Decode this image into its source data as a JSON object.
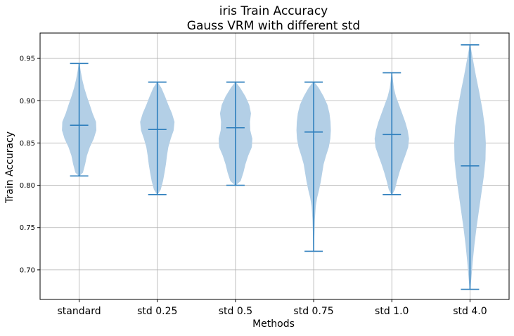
{
  "chart_data": {
    "type": "violin",
    "title": [
      "iris Train Accuracy",
      "Gauss VRM with different std"
    ],
    "xlabel": "Methods",
    "ylabel": "Train Accuracy",
    "categories": [
      "standard",
      "std 0.25",
      "std 0.5",
      "std 0.75",
      "std 1.0",
      "std 4.0"
    ],
    "ylim": [
      0.665,
      0.98
    ],
    "yticks": [
      0.7,
      0.75,
      0.8,
      0.85,
      0.9,
      0.95
    ],
    "ytick_labels": [
      "0.70",
      "0.75",
      "0.80",
      "0.85",
      "0.90",
      "0.95"
    ],
    "grid": true,
    "violins": [
      {
        "name": "standard",
        "min": 0.811,
        "max": 0.944,
        "mean": 0.871,
        "density": [
          [
            0.811,
            0.02
          ],
          [
            0.815,
            0.22
          ],
          [
            0.825,
            0.35
          ],
          [
            0.835,
            0.45
          ],
          [
            0.845,
            0.62
          ],
          [
            0.855,
            0.85
          ],
          [
            0.865,
            1.0
          ],
          [
            0.875,
            0.98
          ],
          [
            0.885,
            0.78
          ],
          [
            0.895,
            0.62
          ],
          [
            0.905,
            0.45
          ],
          [
            0.915,
            0.3
          ],
          [
            0.925,
            0.18
          ],
          [
            0.935,
            0.09
          ],
          [
            0.944,
            0.02
          ]
        ]
      },
      {
        "name": "std 0.25",
        "min": 0.789,
        "max": 0.922,
        "mean": 0.866,
        "density": [
          [
            0.789,
            0.02
          ],
          [
            0.795,
            0.2
          ],
          [
            0.805,
            0.33
          ],
          [
            0.815,
            0.42
          ],
          [
            0.825,
            0.5
          ],
          [
            0.835,
            0.56
          ],
          [
            0.845,
            0.64
          ],
          [
            0.855,
            0.78
          ],
          [
            0.865,
            0.95
          ],
          [
            0.875,
            1.0
          ],
          [
            0.885,
            0.85
          ],
          [
            0.895,
            0.64
          ],
          [
            0.905,
            0.45
          ],
          [
            0.915,
            0.24
          ],
          [
            0.922,
            0.02
          ]
        ]
      },
      {
        "name": "std 0.5",
        "min": 0.8,
        "max": 0.922,
        "mean": 0.868,
        "density": [
          [
            0.8,
            0.02
          ],
          [
            0.805,
            0.3
          ],
          [
            0.815,
            0.46
          ],
          [
            0.825,
            0.58
          ],
          [
            0.835,
            0.74
          ],
          [
            0.845,
            0.95
          ],
          [
            0.855,
            0.98
          ],
          [
            0.865,
            0.86
          ],
          [
            0.875,
            0.84
          ],
          [
            0.885,
            0.9
          ],
          [
            0.895,
            0.8
          ],
          [
            0.905,
            0.58
          ],
          [
            0.915,
            0.28
          ],
          [
            0.922,
            0.02
          ]
        ]
      },
      {
        "name": "std 0.75",
        "min": 0.722,
        "max": 0.922,
        "mean": 0.863,
        "density": [
          [
            0.722,
            0.02
          ],
          [
            0.74,
            0.04
          ],
          [
            0.76,
            0.07
          ],
          [
            0.775,
            0.12
          ],
          [
            0.785,
            0.2
          ],
          [
            0.795,
            0.32
          ],
          [
            0.805,
            0.42
          ],
          [
            0.815,
            0.5
          ],
          [
            0.825,
            0.58
          ],
          [
            0.835,
            0.72
          ],
          [
            0.845,
            0.88
          ],
          [
            0.855,
            0.97
          ],
          [
            0.865,
            1.0
          ],
          [
            0.875,
            0.98
          ],
          [
            0.885,
            0.92
          ],
          [
            0.895,
            0.8
          ],
          [
            0.905,
            0.58
          ],
          [
            0.915,
            0.3
          ],
          [
            0.922,
            0.04
          ]
        ]
      },
      {
        "name": "std 1.0",
        "min": 0.789,
        "max": 0.933,
        "mean": 0.86,
        "density": [
          [
            0.789,
            0.02
          ],
          [
            0.795,
            0.18
          ],
          [
            0.805,
            0.3
          ],
          [
            0.815,
            0.44
          ],
          [
            0.825,
            0.6
          ],
          [
            0.835,
            0.78
          ],
          [
            0.845,
            0.95
          ],
          [
            0.855,
            1.0
          ],
          [
            0.865,
            0.92
          ],
          [
            0.875,
            0.78
          ],
          [
            0.885,
            0.6
          ],
          [
            0.895,
            0.42
          ],
          [
            0.905,
            0.24
          ],
          [
            0.915,
            0.12
          ],
          [
            0.925,
            0.06
          ],
          [
            0.933,
            0.02
          ]
        ]
      },
      {
        "name": "std 4.0",
        "min": 0.677,
        "max": 0.966,
        "mean": 0.823,
        "density": [
          [
            0.677,
            0.02
          ],
          [
            0.69,
            0.08
          ],
          [
            0.71,
            0.16
          ],
          [
            0.73,
            0.26
          ],
          [
            0.75,
            0.38
          ],
          [
            0.77,
            0.52
          ],
          [
            0.79,
            0.66
          ],
          [
            0.81,
            0.8
          ],
          [
            0.83,
            0.9
          ],
          [
            0.85,
            0.92
          ],
          [
            0.87,
            0.86
          ],
          [
            0.89,
            0.72
          ],
          [
            0.91,
            0.54
          ],
          [
            0.93,
            0.34
          ],
          [
            0.95,
            0.16
          ],
          [
            0.966,
            0.02
          ]
        ]
      }
    ],
    "colors": {
      "violin_fill": "#b3cfe6",
      "stats_line": "#2f7fbd",
      "grid": "#b0b0b0",
      "axis": "#000000"
    }
  }
}
